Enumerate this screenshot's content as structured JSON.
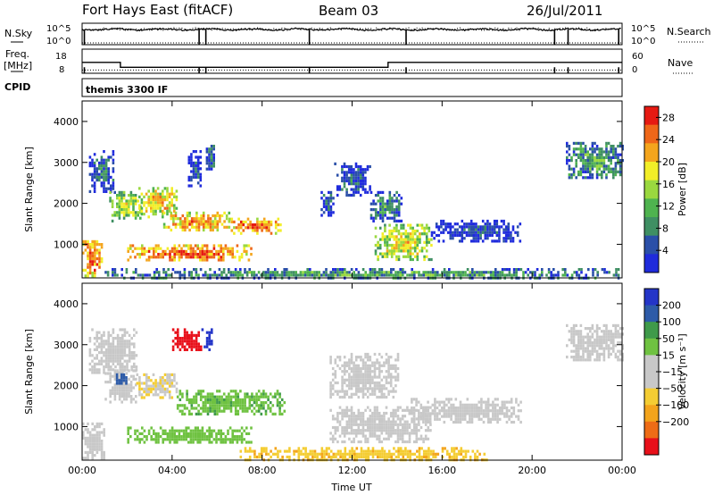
{
  "header": {
    "station": "Fort Hays East (fitACF)",
    "beam": "Beam 03",
    "date": "26/Jul/2011"
  },
  "strip_labels": {
    "nsky": "N.Sky",
    "nsearch": "N.Search",
    "freq_line1": "Freq.",
    "freq_line2": "[MHz]",
    "nave": "Nave",
    "cpid": "CPID",
    "cpid_value": "themis 3300 IF",
    "nsky_ticks": [
      "10^5",
      "10^0"
    ],
    "nsearch_ticks": [
      "10^5",
      "10^0"
    ],
    "freq_ticks": [
      "18",
      "8"
    ],
    "nave_ticks": [
      "60",
      "0"
    ]
  },
  "colors": {
    "power_scale": [
      "#1f2bdc",
      "#2a4fa8",
      "#3f8f63",
      "#4fb34f",
      "#9ad83f",
      "#f2ee28",
      "#f4a51d",
      "#ef6719",
      "#e61a12"
    ],
    "velocity_scale": [
      "#e8101a",
      "#ee6c16",
      "#f3a41c",
      "#f4cd33",
      "#c8c8c8",
      "#c8c8c8",
      "#6fc241",
      "#3f9a4a",
      "#2d5ba8",
      "#2435c8"
    ],
    "ground_scatter": "#c8c8c8"
  },
  "chart_data": [
    {
      "type": "heatmap",
      "name": "power",
      "xlabel": "",
      "ylabel": "Slant Range [km]",
      "x_ticks": [
        "00:00",
        "04:00",
        "08:00",
        "12:00",
        "16:00",
        "20:00",
        "00:00"
      ],
      "y_ticks": [
        1000,
        2000,
        3000,
        4000
      ],
      "xlim_hours": [
        0,
        24
      ],
      "ylim_km": [
        180,
        4500
      ],
      "colorbar": {
        "label": "Power [dB]",
        "min": 0,
        "max": 30,
        "tick_values": [
          4,
          8,
          12,
          16,
          20,
          24,
          28
        ],
        "tick_labels": [
          "4",
          "8",
          "12",
          "16",
          "20",
          "24",
          "28"
        ]
      },
      "echo_regions": [
        {
          "t": [
            0.0,
            0.9
          ],
          "r": [
            200,
            1100
          ],
          "level": 26
        },
        {
          "t": [
            0.3,
            1.4
          ],
          "r": [
            2300,
            3300
          ],
          "level": 8
        },
        {
          "t": [
            1.2,
            2.6
          ],
          "r": [
            1600,
            2300
          ],
          "level": 18
        },
        {
          "t": [
            2.5,
            4.2
          ],
          "r": [
            1700,
            2400
          ],
          "level": 22
        },
        {
          "t": [
            3.6,
            6.5
          ],
          "r": [
            1350,
            1800
          ],
          "level": 24
        },
        {
          "t": [
            6.5,
            8.8
          ],
          "r": [
            1300,
            1650
          ],
          "level": 27
        },
        {
          "t": [
            2.0,
            7.5
          ],
          "r": [
            600,
            1000
          ],
          "level": 27
        },
        {
          "t": [
            4.7,
            5.3
          ],
          "r": [
            2400,
            3300
          ],
          "level": 6
        },
        {
          "t": [
            5.5,
            5.9
          ],
          "r": [
            2800,
            3500
          ],
          "level": 10
        },
        {
          "t": [
            10.6,
            11.2
          ],
          "r": [
            1700,
            2300
          ],
          "level": 8
        },
        {
          "t": [
            11.2,
            12.8
          ],
          "r": [
            2200,
            3000
          ],
          "level": 7
        },
        {
          "t": [
            12.8,
            14.2
          ],
          "r": [
            1600,
            2300
          ],
          "level": 10
        },
        {
          "t": [
            13.0,
            15.5
          ],
          "r": [
            600,
            1500
          ],
          "level": 20
        },
        {
          "t": [
            15.5,
            19.5
          ],
          "r": [
            1100,
            1600
          ],
          "level": 6
        },
        {
          "t": [
            21.5,
            24.0
          ],
          "r": [
            2600,
            3500
          ],
          "level": 12
        },
        {
          "t": [
            1.0,
            24.0
          ],
          "r": [
            200,
            420
          ],
          "level": 12
        }
      ]
    },
    {
      "type": "heatmap",
      "name": "velocity",
      "xlabel": "Time UT",
      "ylabel": "Slant Range [km]",
      "x_ticks": [
        "00:00",
        "04:00",
        "08:00",
        "12:00",
        "16:00",
        "20:00",
        "00:00"
      ],
      "y_ticks": [
        1000,
        2000,
        3000,
        4000
      ],
      "xlim_hours": [
        0,
        24
      ],
      "ylim_km": [
        180,
        4500
      ],
      "colorbar": {
        "label": "Velocity [m s⁻¹]",
        "min": -250,
        "max": 250,
        "tick_values": [
          200,
          100,
          50,
          15,
          -15,
          -50,
          -100,
          -200
        ],
        "tick_labels": [
          "200",
          "100",
          "50",
          "15",
          "−15",
          "−50",
          "−100",
          "−200"
        ]
      },
      "echo_regions": [
        {
          "t": [
            0.0,
            1.0
          ],
          "r": [
            200,
            1100
          ],
          "level": 0
        },
        {
          "t": [
            0.3,
            2.4
          ],
          "r": [
            2300,
            3400
          ],
          "level": 0
        },
        {
          "t": [
            1.0,
            2.4
          ],
          "r": [
            1600,
            2400
          ],
          "level": 0
        },
        {
          "t": [
            2.4,
            4.2
          ],
          "r": [
            1700,
            2300
          ],
          "level": -10
        },
        {
          "t": [
            4.2,
            9.0
          ],
          "r": [
            1300,
            1900
          ],
          "level": 40
        },
        {
          "t": [
            2.0,
            7.5
          ],
          "r": [
            600,
            1000
          ],
          "level": 30
        },
        {
          "t": [
            4.0,
            5.3
          ],
          "r": [
            2900,
            3400
          ],
          "level": -220
        },
        {
          "t": [
            5.3,
            5.8
          ],
          "r": [
            2900,
            3400
          ],
          "level": 220
        },
        {
          "t": [
            1.5,
            2.0
          ],
          "r": [
            2000,
            2300
          ],
          "level": 180
        },
        {
          "t": [
            11.0,
            15.5
          ],
          "r": [
            600,
            1500
          ],
          "level": 0
        },
        {
          "t": [
            14.5,
            19.5
          ],
          "r": [
            1100,
            1700
          ],
          "level": 0
        },
        {
          "t": [
            11.0,
            14.0
          ],
          "r": [
            1700,
            2800
          ],
          "level": 0
        },
        {
          "t": [
            21.5,
            24.0
          ],
          "r": [
            2600,
            3500
          ],
          "level": 0
        },
        {
          "t": [
            7.0,
            18.0
          ],
          "r": [
            200,
            500
          ],
          "level": -40
        }
      ]
    },
    {
      "type": "line",
      "name": "nsky-nsearch",
      "xlim_hours": [
        0,
        24
      ],
      "dropouts_hours": [
        0.1,
        5.2,
        5.5,
        10.1,
        14.4,
        21.0,
        21.6,
        23.85
      ]
    },
    {
      "type": "line",
      "name": "freq-nave",
      "xlim_hours": [
        0,
        24
      ],
      "ylim_freq_mhz": [
        8,
        18
      ],
      "ylim_nave": [
        0,
        60
      ],
      "freq_steps": [
        {
          "from_hours": 0.0,
          "to_hours": 1.7,
          "mhz": 12.5
        },
        {
          "from_hours": 1.7,
          "to_hours": 13.6,
          "mhz": 10.5
        },
        {
          "from_hours": 13.6,
          "to_hours": 24.0,
          "mhz": 12.5
        }
      ],
      "nave_level": 8,
      "dropouts_hours": [
        0.1,
        5.2,
        5.5,
        10.1,
        14.4,
        21.0,
        21.6,
        23.85
      ]
    }
  ]
}
